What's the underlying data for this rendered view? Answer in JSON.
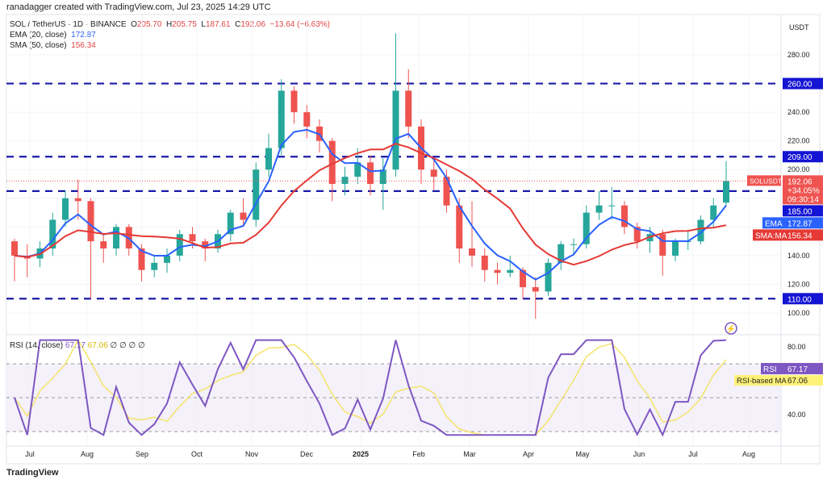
{
  "credit": "ranadagger created with TradingView.com, Jul 23, 2025 14:29 UTC",
  "legend": {
    "symbol": "SOL / TetherUS · 1D · BINANCE",
    "o_label": "O",
    "o": "205.70",
    "h_label": "H",
    "h": "205.75",
    "l_label": "L",
    "l": "187.61",
    "c_label": "C",
    "c": "192.06",
    "change": "−13.64 (−6.63%)",
    "ema": "EMA (20, close)",
    "ema_val": "172.87",
    "sma": "SMA (50, close)",
    "sma_val": "156.34",
    "rsi": "RSI (14, close)",
    "rsi_val": "67.17",
    "rsi_ma_val": "67.06",
    "rsi_extra": "∅ ∅ ∅ ∅"
  },
  "logo": "TradingView",
  "chart_data": {
    "type": "candlestick",
    "currency": "USDT",
    "price_ticks": [
      100,
      120,
      140,
      160,
      180,
      200,
      220,
      240,
      260,
      280
    ],
    "ylim": [
      90,
      300
    ],
    "x_ticks": [
      "Jul",
      "Aug",
      "Sep",
      "Oct",
      "Nov",
      "Dec",
      "2025",
      "Feb",
      "Mar",
      "Apr",
      "May",
      "Jun",
      "Jul",
      "Aug"
    ],
    "levels": [
      260,
      209,
      185,
      110
    ],
    "level_labels": [
      "260.00",
      "209.00",
      "185.00",
      "110.00"
    ],
    "weekly_ohlc": [
      [
        150,
        152,
        122,
        140
      ],
      [
        140,
        148,
        125,
        138
      ],
      [
        138,
        150,
        132,
        145
      ],
      [
        145,
        170,
        140,
        165
      ],
      [
        165,
        185,
        160,
        180
      ],
      [
        180,
        193,
        165,
        178
      ],
      [
        178,
        180,
        110,
        150
      ],
      [
        150,
        155,
        135,
        145
      ],
      [
        145,
        162,
        140,
        160
      ],
      [
        160,
        162,
        140,
        145
      ],
      [
        145,
        148,
        122,
        130
      ],
      [
        130,
        140,
        125,
        135
      ],
      [
        135,
        145,
        128,
        140
      ],
      [
        140,
        158,
        136,
        155
      ],
      [
        155,
        160,
        145,
        150
      ],
      [
        150,
        152,
        136,
        145
      ],
      [
        145,
        158,
        142,
        155
      ],
      [
        155,
        172,
        150,
        170
      ],
      [
        170,
        180,
        160,
        165
      ],
      [
        165,
        205,
        160,
        200
      ],
      [
        200,
        225,
        195,
        215
      ],
      [
        215,
        263,
        210,
        255
      ],
      [
        255,
        258,
        232,
        240
      ],
      [
        240,
        245,
        222,
        230
      ],
      [
        230,
        235,
        212,
        220
      ],
      [
        220,
        222,
        178,
        190
      ],
      [
        190,
        202,
        182,
        195
      ],
      [
        195,
        215,
        190,
        205
      ],
      [
        205,
        210,
        182,
        190
      ],
      [
        190,
        208,
        172,
        200
      ],
      [
        200,
        295,
        195,
        255
      ],
      [
        255,
        270,
        222,
        230
      ],
      [
        230,
        235,
        190,
        200
      ],
      [
        200,
        208,
        186,
        195
      ],
      [
        195,
        200,
        170,
        175
      ],
      [
        175,
        180,
        135,
        145
      ],
      [
        145,
        178,
        132,
        140
      ],
      [
        140,
        145,
        122,
        130
      ],
      [
        130,
        135,
        120,
        128
      ],
      [
        128,
        140,
        125,
        130
      ],
      [
        130,
        132,
        110,
        118
      ],
      [
        118,
        125,
        96,
        115
      ],
      [
        115,
        138,
        112,
        135
      ],
      [
        135,
        150,
        130,
        148
      ],
      [
        148,
        152,
        140,
        148
      ],
      [
        148,
        175,
        145,
        170
      ],
      [
        170,
        185,
        165,
        175
      ],
      [
        175,
        188,
        165,
        175
      ],
      [
        175,
        178,
        155,
        160
      ],
      [
        160,
        163,
        145,
        150
      ],
      [
        150,
        160,
        142,
        155
      ],
      [
        155,
        158,
        126,
        140
      ],
      [
        140,
        152,
        136,
        150
      ],
      [
        150,
        158,
        144,
        150
      ],
      [
        150,
        168,
        148,
        165
      ],
      [
        165,
        180,
        160,
        175
      ],
      [
        177,
        206,
        175,
        192
      ]
    ],
    "last": {
      "symbol": "SOLUSDT",
      "price": "192.06",
      "change": "+34.05%",
      "countdown": "09:30:14"
    },
    "ema_label": "EMA",
    "ema_value": "172.87",
    "sma_label": "SMA:MA",
    "sma_value": "156.34",
    "rsi": {
      "ticks": [
        "80.00",
        "40.00"
      ],
      "bands": [
        70,
        50,
        30
      ],
      "label": "RSI",
      "value": "67.17",
      "ma_label": "RSI-based MA",
      "ma_value": "67.06"
    },
    "colors": {
      "up": "#26a69a",
      "down": "#ef5350",
      "ema": "#2962ff",
      "sma": "#e53935",
      "level": "#1a1aa8",
      "rsi": "#7e57c2",
      "rsi_ma": "#f5e36b"
    }
  }
}
